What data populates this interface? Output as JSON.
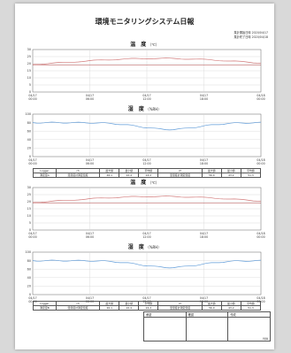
{
  "report": {
    "title": "環境モニタリングシステム日報",
    "meta": [
      {
        "label": "集計開始日時",
        "value": "2020/04/17"
      },
      {
        "label": "集計終了日時",
        "value": "2020/04/18"
      }
    ]
  },
  "charts": [
    {
      "title": "温　度",
      "unit": "（℃）",
      "ytick_labels": [
        "30",
        "25",
        "20",
        "15",
        "10",
        "5",
        "0"
      ],
      "xtick_labels": [
        [
          "04/17",
          "00:00"
        ],
        [
          "04/17",
          "06:00"
        ],
        [
          "04/17",
          "12:00"
        ],
        [
          "04/17",
          "18:00"
        ],
        [
          "04/18",
          "00:00"
        ]
      ]
    },
    {
      "title": "湿　度",
      "unit": "（%RH）",
      "ytick_labels": [
        "100",
        "80",
        "60",
        "40",
        "20",
        "0"
      ],
      "xtick_labels": [
        [
          "04/17",
          "00:00"
        ],
        [
          "04/17",
          "06:00"
        ],
        [
          "04/17",
          "12:00"
        ],
        [
          "04/17",
          "18:00"
        ],
        [
          "04/18",
          "00:00"
        ]
      ]
    },
    {
      "title": "温　度",
      "unit": "（℃）",
      "ytick_labels": [
        "30",
        "25",
        "20",
        "15",
        "10",
        "5",
        "0"
      ],
      "xtick_labels": [
        [
          "04/17",
          "00:00"
        ],
        [
          "04/17",
          "06:00"
        ],
        [
          "04/17",
          "12:00"
        ],
        [
          "04/17",
          "18:00"
        ],
        [
          "04/18",
          "00:00"
        ]
      ]
    },
    {
      "title": "湿　度",
      "unit": "（%RH）",
      "ytick_labels": [
        "100",
        "80",
        "60",
        "40",
        "20",
        "0"
      ],
      "xtick_labels": [
        [
          "04/17",
          "00:00"
        ],
        [
          "04/17",
          "06:00"
        ],
        [
          "04/17",
          "12:00"
        ],
        [
          "04/17",
          "18:00"
        ],
        [
          "04/18",
          "00:00"
        ]
      ]
    }
  ],
  "stats_tables": [
    {
      "header": [
        "Logger",
        "ch",
        "最大値",
        "最小値",
        "平均値",
        "ch",
        "最大値",
        "最小値",
        "平均値"
      ],
      "row": [
        "測定室A",
        "温湿度計測定温度",
        "26.1",
        "22.4",
        "24.2",
        "温湿度計測定湿度",
        "56.0",
        "43.2",
        "51.3"
      ]
    },
    {
      "header": [
        "Logger",
        "ch",
        "最大値",
        "最小値",
        "平均値",
        "ch",
        "最大値",
        "最小値",
        "平均値"
      ],
      "row": [
        "測定室B",
        "温湿度計測定温度",
        "26.1",
        "22.4",
        "24.2",
        "温湿度計測定湿度",
        "56.0",
        "43.2",
        "51.3"
      ]
    }
  ],
  "approval": {
    "headers": [
      "承認",
      "確認",
      "作成"
    ],
    "values": [
      "",
      "",
      "N/A"
    ]
  },
  "colors": {
    "temperature": "#d27b7b",
    "humidity": "#5f9bd8",
    "grid": "#d4d4d4",
    "limit": "#b24a4a"
  }
}
